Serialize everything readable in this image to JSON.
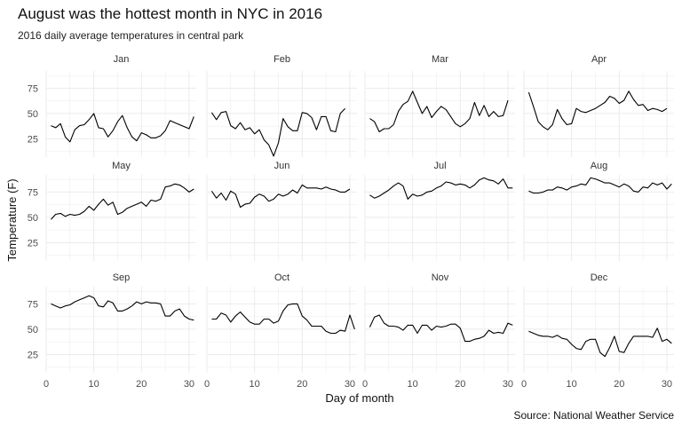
{
  "chart_data": {
    "type": "line",
    "title": "August was the hottest month in NYC in 2016",
    "subtitle": "2016 daily average temperatures in central park",
    "xlabel": "Day of month",
    "ylabel": "Temperature (F)",
    "caption": "Source: National Weather Service",
    "xlim": [
      0,
      31.5
    ],
    "ylim": [
      7,
      92
    ],
    "xticks": [
      0,
      10,
      20,
      30
    ],
    "yticks": [
      25,
      50,
      75
    ],
    "grid": true,
    "facets": [
      {
        "name": "Jan",
        "values": [
          38,
          36,
          40,
          27,
          22,
          34,
          38,
          39,
          44,
          50,
          36,
          35,
          27,
          33,
          42,
          48,
          36,
          27,
          23,
          31,
          29,
          26,
          26,
          28,
          33,
          43,
          41,
          39,
          37,
          35,
          47
        ]
      },
      {
        "name": "Feb",
        "values": [
          51,
          44,
          51,
          52,
          38,
          35,
          41,
          34,
          36,
          30,
          34,
          24,
          19,
          8,
          21,
          45,
          37,
          33,
          33,
          51,
          50,
          46,
          34,
          47,
          47,
          33,
          32,
          50,
          55
        ]
      },
      {
        "name": "Mar",
        "values": [
          45,
          42,
          32,
          35,
          35,
          39,
          52,
          59,
          62,
          72,
          61,
          50,
          57,
          46,
          52,
          57,
          54,
          47,
          40,
          37,
          40,
          45,
          61,
          48,
          58,
          47,
          52,
          47,
          48,
          63
        ]
      },
      {
        "name": "Apr",
        "values": [
          71,
          57,
          42,
          37,
          34,
          39,
          54,
          45,
          39,
          40,
          55,
          52,
          51,
          53,
          55,
          58,
          61,
          67,
          65,
          60,
          63,
          72,
          64,
          58,
          59,
          53,
          55,
          54,
          52,
          55
        ]
      },
      {
        "name": "May",
        "values": [
          48,
          53,
          54,
          51,
          53,
          52,
          53,
          56,
          61,
          57,
          63,
          68,
          62,
          65,
          53,
          55,
          59,
          61,
          63,
          65,
          61,
          67,
          66,
          68,
          80,
          81,
          83,
          82,
          79,
          75,
          78
        ]
      },
      {
        "name": "Jun",
        "values": [
          76,
          69,
          74,
          67,
          76,
          73,
          60,
          63,
          64,
          70,
          73,
          71,
          66,
          68,
          73,
          71,
          73,
          77,
          74,
          82,
          79,
          79,
          79,
          78,
          80,
          78,
          77,
          75,
          75,
          78
        ]
      },
      {
        "name": "Jul",
        "values": [
          72,
          69,
          71,
          74,
          77,
          81,
          84,
          81,
          68,
          73,
          71,
          72,
          75,
          76,
          79,
          81,
          85,
          84,
          82,
          83,
          82,
          79,
          82,
          87,
          89,
          87,
          86,
          83,
          88,
          79,
          79
        ]
      },
      {
        "name": "Aug",
        "values": [
          76,
          74,
          74,
          75,
          77,
          77,
          80,
          79,
          77,
          80,
          81,
          83,
          82,
          89,
          88,
          86,
          84,
          84,
          82,
          80,
          83,
          81,
          76,
          75,
          80,
          79,
          84,
          82,
          84,
          78,
          83
        ]
      },
      {
        "name": "Sep",
        "values": [
          75,
          73,
          71,
          73,
          74,
          77,
          79,
          81,
          83,
          81,
          73,
          72,
          78,
          76,
          68,
          68,
          70,
          73,
          77,
          75,
          77,
          76,
          76,
          75,
          63,
          63,
          68,
          70,
          63,
          60,
          59
        ]
      },
      {
        "name": "Oct",
        "values": [
          60,
          60,
          66,
          64,
          57,
          63,
          67,
          62,
          57,
          55,
          55,
          60,
          60,
          56,
          58,
          68,
          74,
          75,
          75,
          63,
          59,
          53,
          53,
          53,
          48,
          46,
          46,
          49,
          48,
          64,
          50
        ]
      },
      {
        "name": "Nov",
        "values": [
          52,
          62,
          64,
          56,
          53,
          53,
          52,
          49,
          54,
          54,
          46,
          54,
          54,
          49,
          53,
          52,
          53,
          55,
          55,
          51,
          38,
          38,
          40,
          41,
          43,
          49,
          46,
          47,
          46,
          56,
          54
        ]
      },
      {
        "name": "Dec",
        "values": [
          48,
          46,
          44,
          43,
          43,
          42,
          44,
          41,
          40,
          35,
          31,
          30,
          38,
          40,
          40,
          27,
          23,
          32,
          43,
          28,
          27,
          36,
          43,
          43,
          43,
          43,
          42,
          51,
          38,
          40,
          36
        ]
      }
    ]
  }
}
